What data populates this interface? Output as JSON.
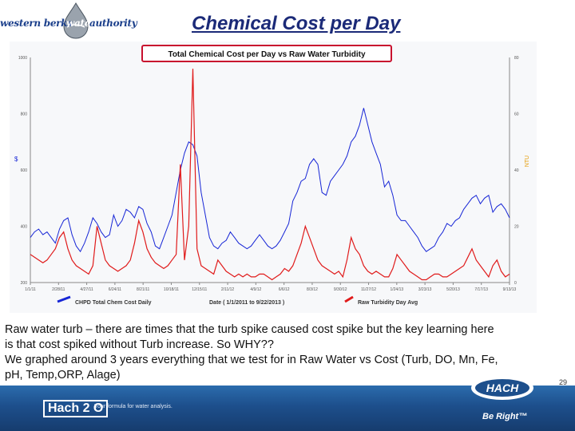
{
  "header": {
    "logo_text_left": "western berks",
    "logo_text_mid": "water",
    "logo_text_right": "authority",
    "slide_title": "Chemical Cost per Day"
  },
  "chart_data": {
    "type": "line",
    "title": "Total Chemical Cost per Day vs Raw Water Turbidity",
    "xlabel": "Date ( 1/1/2011 to 9/22/2013 )",
    "ylabel_left": "$",
    "ylabel_right": "NTU",
    "x_ticks": [
      "1/1/11",
      "2/28/11",
      "4/27/11",
      "6/24/11",
      "8/21/11",
      "10/18/11",
      "12/15/11",
      "2/11/12",
      "4/9/12",
      "6/6/12",
      "8/3/12",
      "9/30/12",
      "11/27/12",
      "1/24/13",
      "3/23/13",
      "5/20/13",
      "7/17/13",
      "9/13/13"
    ],
    "y_left_ticks": [
      "200",
      "400",
      "600",
      "800",
      "1000"
    ],
    "y_left_range": [
      200,
      1000
    ],
    "y_right_ticks": [
      "0",
      "20",
      "40",
      "60",
      "80"
    ],
    "y_right_range": [
      0,
      80
    ],
    "grid": false,
    "legend_position": "bottom",
    "colors": {
      "cost": "#1726d6",
      "turbidity": "#e01b1b"
    },
    "series": [
      {
        "name": "CHPD Total Chem Cost Daily",
        "axis": "left",
        "values": [
          360,
          380,
          390,
          370,
          380,
          360,
          340,
          390,
          420,
          430,
          370,
          330,
          310,
          340,
          380,
          430,
          410,
          380,
          360,
          370,
          440,
          400,
          420,
          460,
          450,
          430,
          470,
          460,
          410,
          380,
          330,
          320,
          360,
          400,
          440,
          520,
          600,
          660,
          700,
          690,
          650,
          520,
          440,
          360,
          330,
          320,
          340,
          350,
          380,
          360,
          340,
          330,
          320,
          330,
          350,
          370,
          350,
          330,
          320,
          330,
          350,
          380,
          410,
          490,
          520,
          560,
          570,
          620,
          640,
          620,
          520,
          510,
          560,
          580,
          600,
          620,
          650,
          700,
          720,
          760,
          820,
          760,
          700,
          660,
          620,
          540,
          560,
          510,
          440,
          420,
          420,
          400,
          380,
          360,
          330,
          310,
          320,
          330,
          360,
          380,
          410,
          400,
          420,
          430,
          460,
          480,
          500,
          510,
          480,
          500,
          510,
          450,
          470,
          480,
          460,
          430
        ]
      },
      {
        "name": "Raw Turbidity Day Avg",
        "axis": "right",
        "values": [
          10,
          9,
          8,
          7,
          8,
          10,
          12,
          16,
          18,
          12,
          8,
          6,
          5,
          4,
          3,
          6,
          20,
          14,
          8,
          6,
          5,
          4,
          5,
          6,
          8,
          14,
          22,
          18,
          12,
          9,
          7,
          6,
          5,
          6,
          8,
          10,
          42,
          8,
          20,
          76,
          12,
          6,
          5,
          4,
          3,
          8,
          6,
          4,
          3,
          2,
          3,
          2,
          3,
          2,
          2,
          3,
          3,
          2,
          1,
          2,
          3,
          5,
          4,
          6,
          10,
          14,
          20,
          16,
          12,
          8,
          6,
          5,
          4,
          3,
          4,
          2,
          8,
          16,
          12,
          10,
          6,
          4,
          3,
          4,
          3,
          2,
          2,
          5,
          10,
          8,
          6,
          4,
          3,
          2,
          1,
          1,
          2,
          3,
          3,
          2,
          2,
          3,
          4,
          5,
          6,
          9,
          12,
          8,
          6,
          4,
          2,
          6,
          8,
          4,
          2,
          3
        ]
      }
    ]
  },
  "body": {
    "line1": "Raw water turb – there are times that the turb spike caused cost spike but the key learning here",
    "line2": "is that cost spiked without Turb increase.  So WHY??",
    "line3": "We graphed around 3 years everything that we test for in Raw Water vs Cost (Turb, DO, Mn, Fe,",
    "line4": "pH, Temp,ORP, Alage)",
    "bullet": "."
  },
  "page_number": "29",
  "footer": {
    "hach2o_label": "Hach 2 O",
    "hach2o_tagline": "Your formula for water analysis.",
    "brand": "HACH",
    "slogan": "Be Right™"
  }
}
